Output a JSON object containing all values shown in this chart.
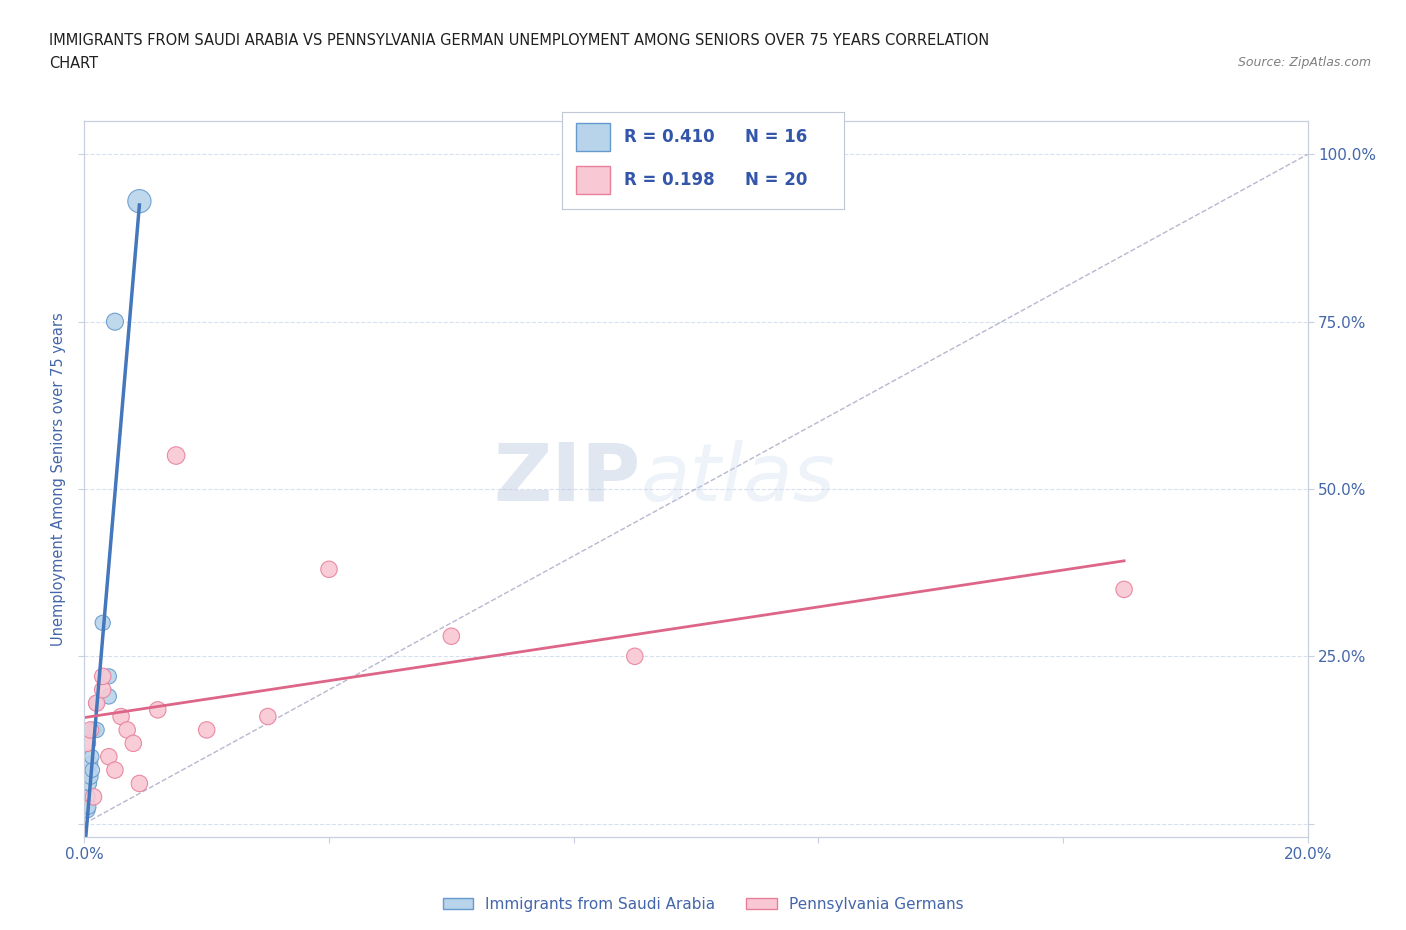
{
  "title_line1": "IMMIGRANTS FROM SAUDI ARABIA VS PENNSYLVANIA GERMAN UNEMPLOYMENT AMONG SENIORS OVER 75 YEARS CORRELATION",
  "title_line2": "CHART",
  "source_text": "Source: ZipAtlas.com",
  "ylabel": "Unemployment Among Seniors over 75 years",
  "xlim": [
    0.0,
    0.2
  ],
  "ylim": [
    -0.02,
    1.05
  ],
  "x_ticks": [
    0.0,
    0.04,
    0.08,
    0.12,
    0.16,
    0.2
  ],
  "x_tick_labels": [
    "0.0%",
    "",
    "",
    "",
    "",
    "20.0%"
  ],
  "y_ticks": [
    0.0,
    0.25,
    0.5,
    0.75,
    1.0
  ],
  "y_tick_labels_left": [
    "",
    "",
    "",
    "",
    ""
  ],
  "y_tick_labels_right": [
    "",
    "25.0%",
    "50.0%",
    "75.0%",
    "100.0%"
  ],
  "series1_label": "Immigrants from Saudi Arabia",
  "series1_color": "#b8d4ea",
  "series1_edge_color": "#6699cc",
  "series1_R": "0.410",
  "series1_N": "16",
  "series2_label": "Pennsylvania Germans",
  "series2_color": "#f8c8d4",
  "series2_edge_color": "#e8809a",
  "series2_R": "0.198",
  "series2_N": "20",
  "trendline1_color": "#4477bb",
  "trendline2_color": "#dd6688",
  "diagonal_color": "#9999bb",
  "series1_x": [
    0.0005,
    0.0006,
    0.0007,
    0.0008,
    0.001,
    0.001,
    0.0012,
    0.0013,
    0.0015,
    0.002,
    0.002,
    0.003,
    0.004,
    0.004,
    0.005,
    0.009
  ],
  "series1_y": [
    0.02,
    0.04,
    0.025,
    0.06,
    0.07,
    0.09,
    0.1,
    0.08,
    0.14,
    0.14,
    0.18,
    0.3,
    0.19,
    0.22,
    0.75,
    0.93
  ],
  "series1_sizes": [
    120,
    110,
    110,
    110,
    120,
    110,
    110,
    110,
    120,
    120,
    110,
    120,
    120,
    120,
    150,
    280
  ],
  "series2_x": [
    0.0005,
    0.001,
    0.0015,
    0.002,
    0.003,
    0.003,
    0.004,
    0.005,
    0.006,
    0.007,
    0.008,
    0.009,
    0.012,
    0.015,
    0.02,
    0.03,
    0.04,
    0.06,
    0.09,
    0.17
  ],
  "series2_y": [
    0.12,
    0.14,
    0.04,
    0.18,
    0.2,
    0.22,
    0.1,
    0.08,
    0.16,
    0.14,
    0.12,
    0.06,
    0.17,
    0.55,
    0.14,
    0.16,
    0.38,
    0.28,
    0.25,
    0.35
  ],
  "series2_sizes": [
    140,
    140,
    140,
    140,
    140,
    140,
    140,
    140,
    140,
    140,
    140,
    140,
    140,
    160,
    140,
    140,
    140,
    140,
    140,
    140
  ],
  "watermark_zip": "ZIP",
  "watermark_atlas": "atlas",
  "legend_color": "#3355aa",
  "background_color": "#ffffff",
  "grid_color": "#d8e0f0",
  "axis_color": "#4466aa",
  "title_color": "#202020",
  "source_color": "#808080"
}
